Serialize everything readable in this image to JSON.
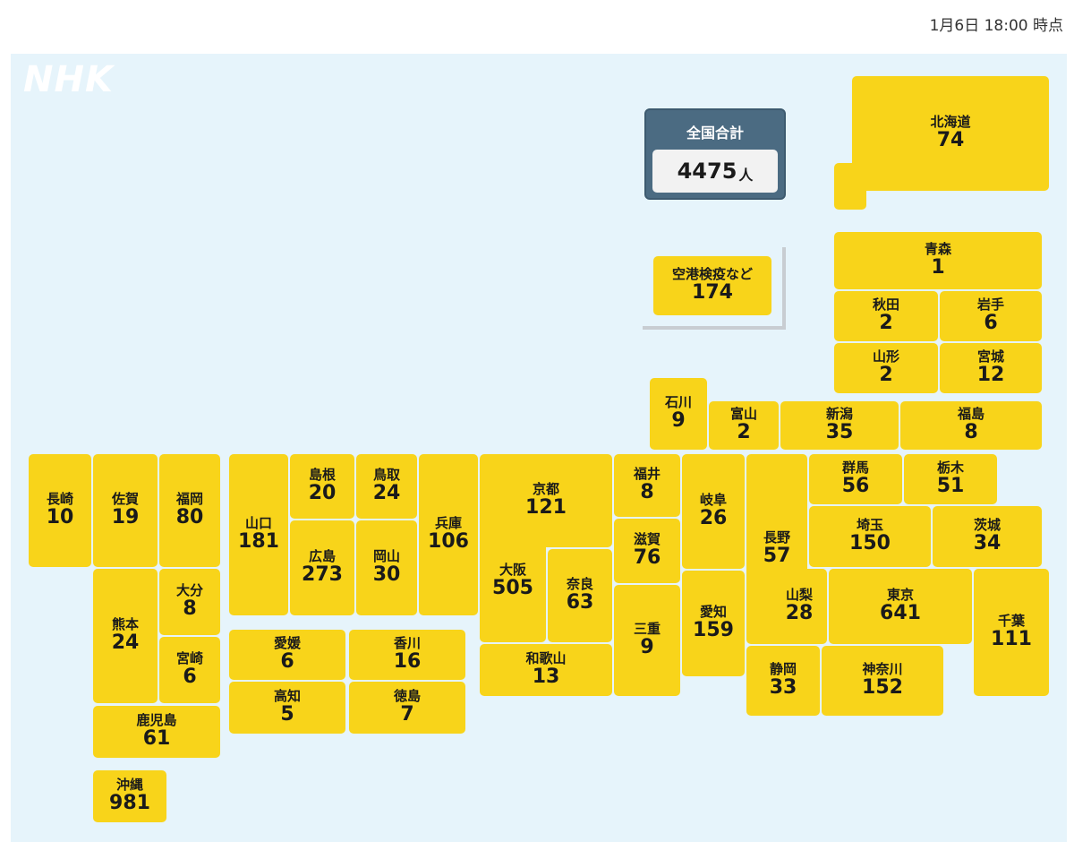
{
  "timestamp": "1月6日 18:00 時点",
  "logo": "NHK",
  "colors": {
    "tile": "#f8d41a",
    "background": "#e6f4fb",
    "total_box": "#4b6b82"
  },
  "total": {
    "label": "全国合計",
    "value": "4475",
    "unit": "人"
  },
  "prefectures": [
    {
      "id": "hokkaido",
      "name": "北海道",
      "value": "74"
    },
    {
      "id": "airport",
      "name": "空港検疫など",
      "value": "174"
    },
    {
      "id": "aomori",
      "name": "青森",
      "value": "1"
    },
    {
      "id": "akita",
      "name": "秋田",
      "value": "2"
    },
    {
      "id": "iwate",
      "name": "岩手",
      "value": "6"
    },
    {
      "id": "yamagata",
      "name": "山形",
      "value": "2"
    },
    {
      "id": "miyagi",
      "name": "宮城",
      "value": "12"
    },
    {
      "id": "ishikawa",
      "name": "石川",
      "value": "9"
    },
    {
      "id": "toyama",
      "name": "富山",
      "value": "2"
    },
    {
      "id": "niigata",
      "name": "新潟",
      "value": "35"
    },
    {
      "id": "fukushima",
      "name": "福島",
      "value": "8"
    },
    {
      "id": "nagasaki",
      "name": "長崎",
      "value": "10"
    },
    {
      "id": "saga",
      "name": "佐賀",
      "value": "19"
    },
    {
      "id": "fukuoka",
      "name": "福岡",
      "value": "80"
    },
    {
      "id": "yamaguchi",
      "name": "山口",
      "value": "181"
    },
    {
      "id": "shimane",
      "name": "島根",
      "value": "20"
    },
    {
      "id": "tottori",
      "name": "鳥取",
      "value": "24"
    },
    {
      "id": "hyogo",
      "name": "兵庫",
      "value": "106"
    },
    {
      "id": "kyoto",
      "name": "京都",
      "value": "121"
    },
    {
      "id": "fukui",
      "name": "福井",
      "value": "8"
    },
    {
      "id": "gifu",
      "name": "岐阜",
      "value": "26"
    },
    {
      "id": "nagano",
      "name": "長野",
      "value": "57"
    },
    {
      "id": "gunma",
      "name": "群馬",
      "value": "56"
    },
    {
      "id": "tochigi",
      "name": "栃木",
      "value": "51"
    },
    {
      "id": "saitama",
      "name": "埼玉",
      "value": "150"
    },
    {
      "id": "ibaraki",
      "name": "茨城",
      "value": "34"
    },
    {
      "id": "hiroshima",
      "name": "広島",
      "value": "273"
    },
    {
      "id": "okayama",
      "name": "岡山",
      "value": "30"
    },
    {
      "id": "osaka",
      "name": "大阪",
      "value": "505"
    },
    {
      "id": "shiga",
      "name": "滋賀",
      "value": "76"
    },
    {
      "id": "nara",
      "name": "奈良",
      "value": "63"
    },
    {
      "id": "yamanashi",
      "name": "山梨",
      "value": "28"
    },
    {
      "id": "tokyo",
      "name": "東京",
      "value": "641"
    },
    {
      "id": "kumamoto",
      "name": "熊本",
      "value": "24"
    },
    {
      "id": "oita",
      "name": "大分",
      "value": "8"
    },
    {
      "id": "miyazaki",
      "name": "宮崎",
      "value": "6"
    },
    {
      "id": "mie",
      "name": "三重",
      "value": "9"
    },
    {
      "id": "aichi",
      "name": "愛知",
      "value": "159"
    },
    {
      "id": "chiba",
      "name": "千葉",
      "value": "111"
    },
    {
      "id": "ehime",
      "name": "愛媛",
      "value": "6"
    },
    {
      "id": "kagawa",
      "name": "香川",
      "value": "16"
    },
    {
      "id": "wakayama",
      "name": "和歌山",
      "value": "13"
    },
    {
      "id": "kochi",
      "name": "高知",
      "value": "5"
    },
    {
      "id": "tokushima",
      "name": "徳島",
      "value": "7"
    },
    {
      "id": "shizuoka",
      "name": "静岡",
      "value": "33"
    },
    {
      "id": "kanagawa",
      "name": "神奈川",
      "value": "152"
    },
    {
      "id": "kagoshima",
      "name": "鹿児島",
      "value": "61"
    },
    {
      "id": "okinawa",
      "name": "沖縄",
      "value": "981"
    }
  ]
}
